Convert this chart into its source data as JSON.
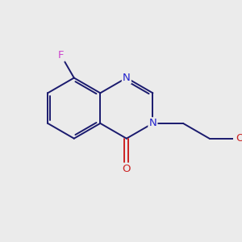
{
  "background_color": "#ebebeb",
  "bond_color": "#1a1a6e",
  "atom_colors": {
    "F": "#cc44cc",
    "N": "#2222cc",
    "O": "#cc2222",
    "C": "#1a1a6e"
  },
  "figsize": [
    3.0,
    3.0
  ],
  "dpi": 100,
  "xlim": [
    0,
    10
  ],
  "ylim": [
    0,
    10
  ],
  "bond_lw": 1.4,
  "font_size": 9.5
}
